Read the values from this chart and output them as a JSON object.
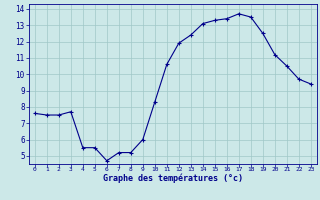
{
  "x": [
    0,
    1,
    2,
    3,
    4,
    5,
    6,
    7,
    8,
    9,
    10,
    11,
    12,
    13,
    14,
    15,
    16,
    17,
    18,
    19,
    20,
    21,
    22,
    23
  ],
  "y": [
    7.6,
    7.5,
    7.5,
    7.7,
    5.5,
    5.5,
    4.7,
    5.2,
    5.2,
    6.0,
    8.3,
    10.6,
    11.9,
    12.4,
    13.1,
    13.3,
    13.4,
    13.7,
    13.5,
    12.5,
    11.2,
    10.5,
    9.7,
    9.4
  ],
  "line_color": "#00008B",
  "marker": "+",
  "marker_color": "#00008B",
  "bg_color": "#cce8e8",
  "grid_color": "#a0c8c8",
  "xlabel": "Graphe des températures (°c)",
  "xlabel_color": "#00008B",
  "tick_color": "#00008B",
  "ylim": [
    4.5,
    14.3
  ],
  "xlim": [
    -0.5,
    23.5
  ],
  "yticks": [
    5,
    6,
    7,
    8,
    9,
    10,
    11,
    12,
    13,
    14
  ],
  "xticks": [
    0,
    1,
    2,
    3,
    4,
    5,
    6,
    7,
    8,
    9,
    10,
    11,
    12,
    13,
    14,
    15,
    16,
    17,
    18,
    19,
    20,
    21,
    22,
    23
  ],
  "figsize": [
    3.2,
    2.0
  ],
  "dpi": 100
}
